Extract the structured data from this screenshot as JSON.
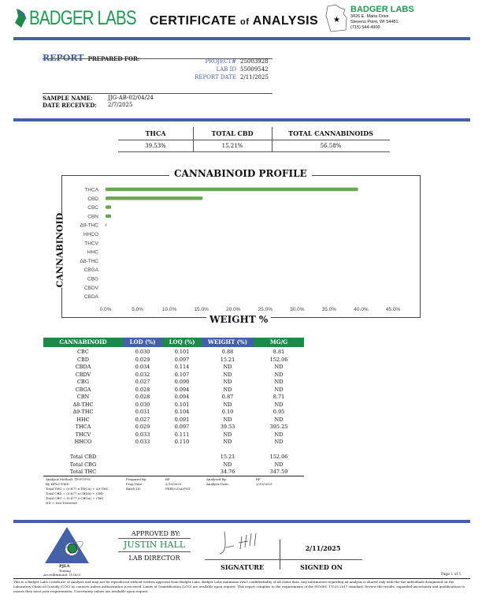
{
  "header": {
    "brand": "BADGER LABS",
    "title_main": "CERTIFICATE",
    "title_of": "of",
    "title_end": "ANALYSIS",
    "lab": {
      "name": "BADGER LABS",
      "address1": "3426 E. Maria Drive",
      "address2": "Stevens Point, WI 54481",
      "phone": "(715) 544-4900"
    }
  },
  "report": {
    "report_word": "REPORT",
    "prepared_for": "PREPARED FOR:",
    "fields": [
      {
        "label": "PROJECT#",
        "value": "25003928"
      },
      {
        "label": "LAB ID",
        "value": "55009542"
      },
      {
        "label": "REPORT DATE",
        "value": "2/11/2025"
      }
    ],
    "sample_name_label": "SAMPLE NAME:",
    "sample_name": "JJG-AB-02/04/24",
    "date_received_label": "DATE RECEIVED:",
    "date_received": "2/7/2025"
  },
  "summary": {
    "headers": [
      "THCA",
      "TOTAL CBD",
      "TOTAL CANNABINOIDS"
    ],
    "values": [
      "39.53%",
      "15.21%",
      "56.58%"
    ]
  },
  "chart_data": {
    "type": "bar",
    "orientation": "horizontal",
    "title": "CANNABINOID PROFILE",
    "xlabel": "WEIGHT %",
    "ylabel": "CANNABINOID",
    "categories": [
      "THCA",
      "CBD",
      "CBC",
      "CBN",
      "Δ9-THC",
      "HHCO",
      "THCV",
      "HHC",
      "Δ8-THC",
      "CBGA",
      "CBG",
      "CBDV",
      "CBDA"
    ],
    "values": [
      39.53,
      15.21,
      0.88,
      0.87,
      0.1,
      0,
      0,
      0,
      0,
      0,
      0,
      0,
      0
    ],
    "xlim": [
      0,
      45
    ],
    "xticks": [
      "0.0%",
      "5.0%",
      "10.0%",
      "15.0%",
      "20.0%",
      "25.0%",
      "30.0%",
      "35.0%",
      "40.0%",
      "45.0%"
    ],
    "bar_color": "#6aa84f",
    "grid": false
  },
  "table": {
    "headers": [
      "CANNABINOID",
      "LOD (%)",
      "LOQ (%)",
      "WEIGHT (%)",
      "MG/G"
    ],
    "rows": [
      [
        "CBC",
        "0.030",
        "0.101",
        "0.88",
        "8.81"
      ],
      [
        "CBD",
        "0.029",
        "0.097",
        "15.21",
        "152.06"
      ],
      [
        "CBDA",
        "0.034",
        "0.114",
        "ND",
        "ND"
      ],
      [
        "CBDV",
        "0.032",
        "0.107",
        "ND",
        "ND"
      ],
      [
        "CBG",
        "0.027",
        "0.090",
        "ND",
        "ND"
      ],
      [
        "CBGA",
        "0.028",
        "0.094",
        "ND",
        "ND"
      ],
      [
        "CBN",
        "0.028",
        "0.094",
        "0.87",
        "8.71"
      ],
      [
        "Δ8-THC",
        "0.030",
        "0.101",
        "ND",
        "ND"
      ],
      [
        "Δ9-THC",
        "0.031",
        "0.104",
        "0.10",
        "0.95"
      ],
      [
        "HHC",
        "0.027",
        "0.091",
        "ND",
        "ND"
      ],
      [
        "THCA",
        "0.029",
        "0.097",
        "39.53",
        "395.25"
      ],
      [
        "THCV",
        "0.033",
        "0.111",
        "ND",
        "ND"
      ],
      [
        "HHCO",
        "0.033",
        "0.110",
        "ND",
        "ND"
      ]
    ],
    "totals": [
      [
        "Total CBD",
        "15.21",
        "152.06"
      ],
      [
        "Total CBG",
        "ND",
        "ND"
      ],
      [
        "Total THC",
        "34.76",
        "347.59"
      ]
    ]
  },
  "notes": {
    "method": [
      "Analysis Method: TP-POT-01",
      "By HPLC-VWD",
      "Total THC = (0.877 x THCA) + Δ9-THC",
      "Total CBD = (0.877 x CBDA) + CBD",
      "Total CBG = (0.877 x CBGA) + CBG",
      "ND = Not Detected"
    ],
    "prepared_by_label": "Prepared By:",
    "prepared_by": "RF",
    "prep_date_label": "Prep Date:",
    "prep_date": "2/10/2025",
    "batch_label": "Batch ID:",
    "batch": "FEB1025A-POT",
    "analyzed_by_label": "Analyzed By:",
    "analyzed_by": "RF",
    "analysis_date_label": "Analysis Date:",
    "analysis_date": "2/10/2025"
  },
  "footer": {
    "pjla": "PJLA",
    "testing": "Testing",
    "accreditation": "Accreditation# 115833",
    "approved_by": "APPROVED BY:",
    "approver": "JUSTIN HALL",
    "approver_title": "LAB DIRECTOR",
    "signature_label": "SIGNATURE",
    "signed_on_label": "SIGNED ON",
    "signed_on": "2/11/2025",
    "page": "Page 1 of 1",
    "disclaimer": "This is a Badger Labs Certificate of Analysis and may not be reproduced without written approval from Badger Labs. Badger Labs maintains strict confidentiality of all client data. Any information regarding an analysis is shared only with the the individuals designated on the Laboratory Chain of Custody (COC) as contacts unless authorization is received. Limits of Quantification (LOQ) are available upon request. This report complies to the requirements of the ISO/IEC 17025:2017 standard. Review the results, expanded uncertainty and qualifications to ensure they meet your requirements. Uncertainty values are available upon request."
  },
  "colors": {
    "blue": "#4461a8",
    "green": "#1e8a4a",
    "bar": "#6aa84f"
  }
}
